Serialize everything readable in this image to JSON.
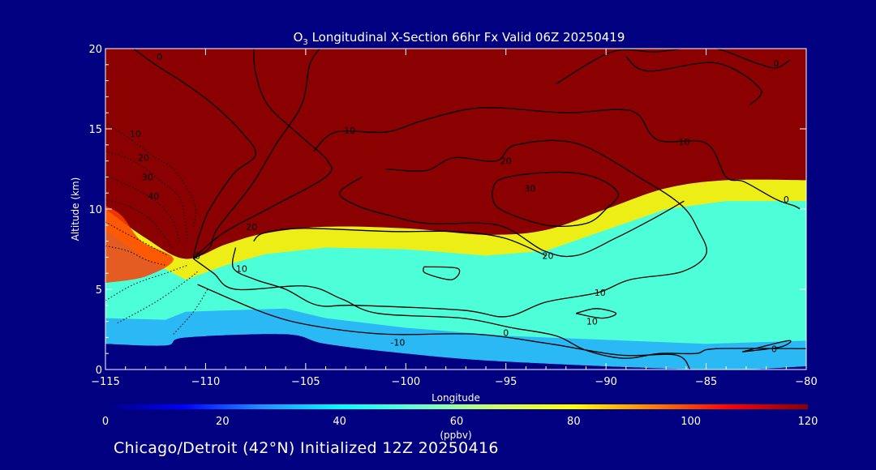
{
  "title": {
    "prefix": "O",
    "subscript": "3",
    "rest": " Longitudinal X-Section 66hr  Fx Valid 06Z 20250419"
  },
  "footer": "Chicago/Detroit (42°N) Initialized 12Z 20250416",
  "colors": {
    "background": "#000080",
    "stratosphere": "#8b0000",
    "contour": "#000000"
  },
  "chart_data": {
    "type": "heatmap",
    "xlabel": "Longitude",
    "ylabel": "Altitude (km)",
    "xlim": [
      -115,
      -80
    ],
    "ylim": [
      0,
      20
    ],
    "xticks": [
      -115,
      -110,
      -105,
      -100,
      -95,
      -90,
      -85,
      -80
    ],
    "xtick_labels": [
      "−115",
      "−110",
      "−105",
      "−100",
      "−95",
      "−90",
      "−85",
      "−80"
    ],
    "yticks": [
      0,
      5,
      10,
      15,
      20
    ],
    "ytick_labels": [
      "0",
      "5",
      "10",
      "15",
      "20"
    ],
    "colorbar": {
      "label": "(ppbv)",
      "range": [
        0,
        120
      ],
      "ticks": [
        0,
        20,
        40,
        60,
        80,
        100,
        120
      ],
      "tick_labels": [
        "0",
        "20",
        "40",
        "60",
        "80",
        "100",
        "120"
      ],
      "colormap": [
        "#000080",
        "#0000ff",
        "#1e90ff",
        "#00ffff",
        "#66ffcc",
        "#ccff66",
        "#ffff00",
        "#ff8000",
        "#ff0000",
        "#8b0000"
      ]
    },
    "ozone_field_ppbv": {
      "boundary_layer_top_km": [
        {
          "lon": -115,
          "alt": 1.6
        },
        {
          "lon": -112,
          "alt": 1.5
        },
        {
          "lon": -111,
          "alt": 2.0
        },
        {
          "lon": -106,
          "alt": 2.2
        },
        {
          "lon": -104,
          "alt": 1.6
        },
        {
          "lon": -100,
          "alt": 1.0
        },
        {
          "lon": -95,
          "alt": 0.5
        },
        {
          "lon": -85,
          "alt": 0.0
        },
        {
          "lon": -80,
          "alt": 0.2
        }
      ],
      "free_troposphere_ppbv": 50,
      "tropopause_km": [
        {
          "lon": -115,
          "alt": 10.0
        },
        {
          "lon": -113,
          "alt": 8.2
        },
        {
          "lon": -111,
          "alt": 6.9
        },
        {
          "lon": -109,
          "alt": 7.8
        },
        {
          "lon": -107,
          "alt": 8.5
        },
        {
          "lon": -104,
          "alt": 8.9
        },
        {
          "lon": -100,
          "alt": 8.8
        },
        {
          "lon": -96,
          "alt": 8.4
        },
        {
          "lon": -93,
          "alt": 8.7
        },
        {
          "lon": -90,
          "alt": 10.0
        },
        {
          "lon": -87,
          "alt": 11.3
        },
        {
          "lon": -84,
          "alt": 11.8
        },
        {
          "lon": -80,
          "alt": 11.8
        }
      ],
      "stratosphere_ppbv": 120
    },
    "contour_labels": [
      {
        "text": "0",
        "lon": -112.3,
        "alt": 19.5
      },
      {
        "text": "0",
        "lon": -81.5,
        "alt": 19.1
      },
      {
        "text": "10",
        "lon": -113.5,
        "alt": 14.7
      },
      {
        "text": "20",
        "lon": -113.1,
        "alt": 13.2
      },
      {
        "text": "30",
        "lon": -112.9,
        "alt": 12.0
      },
      {
        "text": "40",
        "lon": -112.6,
        "alt": 10.8
      },
      {
        "text": "10",
        "lon": -102.8,
        "alt": 14.9
      },
      {
        "text": "20",
        "lon": -95.0,
        "alt": 13.0
      },
      {
        "text": "10",
        "lon": -86.1,
        "alt": 14.2
      },
      {
        "text": "30",
        "lon": -93.8,
        "alt": 11.3
      },
      {
        "text": "20",
        "lon": -107.7,
        "alt": 8.9
      },
      {
        "text": "10",
        "lon": -108.2,
        "alt": 6.3
      },
      {
        "text": "0",
        "lon": -110.4,
        "alt": 7.1
      },
      {
        "text": "20",
        "lon": -92.9,
        "alt": 7.1
      },
      {
        "text": "10",
        "lon": -90.3,
        "alt": 4.8
      },
      {
        "text": "10",
        "lon": -90.7,
        "alt": 3.0
      },
      {
        "text": "0",
        "lon": -95.0,
        "alt": 2.3
      },
      {
        "text": "-10",
        "lon": -100.4,
        "alt": 1.7
      },
      {
        "text": "0",
        "lon": -81.6,
        "alt": 1.3
      },
      {
        "text": "0",
        "lon": -81.0,
        "alt": 10.6
      }
    ],
    "contours": [
      {
        "style": "solid",
        "points": [
          [
            -113.6,
            20
          ],
          [
            -112.5,
            19
          ],
          [
            -111,
            17.8
          ],
          [
            -109.6,
            16.5
          ],
          [
            -108.2,
            14.8
          ],
          [
            -107.5,
            13.4
          ],
          [
            -108.6,
            12.2
          ],
          [
            -109.8,
            10
          ],
          [
            -110.2,
            8.8
          ],
          [
            -110.5,
            7.6
          ],
          [
            -110.6,
            6.9
          ]
        ]
      },
      {
        "style": "solid",
        "points": [
          [
            -107.6,
            20
          ],
          [
            -107.5,
            18.5
          ],
          [
            -106.9,
            16.5
          ],
          [
            -105.3,
            14.6
          ],
          [
            -103.9,
            13.0
          ],
          [
            -104,
            12.0
          ],
          [
            -106.6,
            10.2
          ],
          [
            -109,
            8.6
          ],
          [
            -110.2,
            7.4
          ],
          [
            -110.6,
            6.9
          ]
        ]
      },
      {
        "style": "solid",
        "points": [
          [
            -110.6,
            6.9
          ],
          [
            -109.8,
            7.6
          ],
          [
            -109.4,
            8.8
          ],
          [
            -107.7,
            11.5
          ],
          [
            -106.5,
            14.0
          ],
          [
            -105.2,
            16.5
          ],
          [
            -104.8,
            19.0
          ],
          [
            -104.3,
            20
          ]
        ]
      },
      {
        "style": "solid",
        "points": [
          [
            -104.6,
            13.6
          ],
          [
            -103.5,
            14.8
          ],
          [
            -101,
            14.8
          ],
          [
            -99.2,
            15.5
          ],
          [
            -97,
            16.2
          ],
          [
            -95.2,
            16.3
          ],
          [
            -92,
            16.0
          ],
          [
            -89.5,
            16.2
          ],
          [
            -88.4,
            15.9
          ],
          [
            -87.4,
            14.3
          ],
          [
            -85,
            14.1
          ],
          [
            -84,
            12.0
          ],
          [
            -83.1,
            11.7
          ],
          [
            -81.5,
            10.6
          ],
          [
            -80.6,
            10.2
          ],
          [
            -80.3,
            10.0
          ]
        ]
      },
      {
        "style": "solid",
        "points": [
          [
            -89,
            19.5
          ],
          [
            -87.9,
            18.6
          ],
          [
            -84.5,
            19.1
          ],
          [
            -82.3,
            17.5
          ],
          [
            -82.8,
            16.5
          ]
        ]
      },
      {
        "style": "solid",
        "points": [
          [
            -92.5,
            17.8
          ],
          [
            -89.7,
            19.8
          ],
          [
            -87.5,
            19.8
          ],
          [
            -84.9,
            20.1
          ],
          [
            -82.5,
            19.1
          ],
          [
            -81.5,
            18.8
          ],
          [
            -80.8,
            19.3
          ]
        ]
      },
      {
        "style": "solid",
        "points": [
          [
            -101,
            12.5
          ],
          [
            -99,
            12.4
          ],
          [
            -97.6,
            13.2
          ],
          [
            -95.5,
            13.0
          ],
          [
            -94.5,
            14.0
          ],
          [
            -91.5,
            14.1
          ],
          [
            -88.1,
            11.8
          ],
          [
            -86.2,
            10.2
          ],
          [
            -85.4,
            8.7
          ],
          [
            -85,
            7.2
          ],
          [
            -86.2,
            6.1
          ],
          [
            -88.8,
            5.6
          ],
          [
            -90.4,
            4.8
          ],
          [
            -93.0,
            4.2
          ],
          [
            -95.0,
            3.3
          ],
          [
            -97.2,
            3.7
          ],
          [
            -102.5,
            4.0
          ],
          [
            -104.4,
            4.0
          ],
          [
            -106,
            5.0
          ],
          [
            -107.5,
            5.6
          ],
          [
            -108.6,
            6.3
          ],
          [
            -108.5,
            7.6
          ]
        ]
      },
      {
        "style": "solid",
        "points": [
          [
            -95.7,
            11.0
          ],
          [
            -95.2,
            11.9
          ],
          [
            -92.6,
            12.3
          ],
          [
            -90.6,
            12.0
          ],
          [
            -89.4,
            11.0
          ],
          [
            -90.0,
            10.0
          ],
          [
            -91.0,
            9.1
          ],
          [
            -93.0,
            9.0
          ],
          [
            -95.3,
            10.0
          ],
          [
            -95.7,
            11.0
          ]
        ]
      },
      {
        "style": "solid",
        "points": [
          [
            -102.2,
            12.0
          ],
          [
            -103.3,
            11.0
          ],
          [
            -102.4,
            10.2
          ],
          [
            -100.8,
            9.6
          ],
          [
            -98.9,
            9.1
          ],
          [
            -95.4,
            9.0
          ],
          [
            -93.1,
            7.4
          ],
          [
            -91.5,
            7.1
          ],
          [
            -89.5,
            8.2
          ],
          [
            -87.5,
            9.5
          ],
          [
            -86.1,
            10.5
          ]
        ]
      },
      {
        "style": "solid",
        "points": [
          [
            -107.6,
            8.0
          ],
          [
            -107.1,
            8.5
          ],
          [
            -105.2,
            8.8
          ],
          [
            -100.7,
            8.6
          ],
          [
            -97.6,
            8.6
          ],
          [
            -95.1,
            8.2
          ],
          [
            -93.0,
            7.1
          ]
        ]
      },
      {
        "style": "solid",
        "points": [
          [
            -99.1,
            6.4
          ],
          [
            -99.0,
            6.0
          ],
          [
            -97.7,
            5.6
          ],
          [
            -97.4,
            6.3
          ],
          [
            -99.1,
            6.4
          ]
        ]
      },
      {
        "style": "solid",
        "points": [
          [
            -91.5,
            3.5
          ],
          [
            -90.2,
            3.2
          ],
          [
            -89.5,
            3.5
          ],
          [
            -90.5,
            3.8
          ],
          [
            -91.5,
            3.5
          ]
        ]
      },
      {
        "style": "solid",
        "points": [
          [
            -110.6,
            6.9
          ],
          [
            -109.6,
            6.0
          ],
          [
            -108.5,
            5.0
          ],
          [
            -105,
            5.2
          ],
          [
            -103.2,
            4.4
          ],
          [
            -101.4,
            3.5
          ],
          [
            -97.2,
            3.2
          ],
          [
            -94.7,
            2.6
          ],
          [
            -92.5,
            2.1
          ],
          [
            -91,
            1.2
          ],
          [
            -89.1,
            0.7
          ],
          [
            -87.3,
            1.0
          ],
          [
            -85.5,
            1.0
          ],
          [
            -84.5,
            1.3
          ],
          [
            -80,
            1.3
          ]
        ]
      },
      {
        "style": "solid",
        "points": [
          [
            -83.2,
            1.1
          ],
          [
            -81.3,
            1.4
          ],
          [
            -80.9,
            1.8
          ],
          [
            -83.2,
            1.1
          ]
        ]
      },
      {
        "style": "solid",
        "points": [
          [
            -85.8,
            0
          ],
          [
            -86.5,
            0.9
          ],
          [
            -89.3,
            0.9
          ],
          [
            -92.8,
            1.6
          ],
          [
            -96.5,
            2.2
          ],
          [
            -101,
            2.2
          ],
          [
            -104.5,
            2.7
          ],
          [
            -107,
            3.5
          ],
          [
            -110.4,
            5.3
          ]
        ]
      },
      {
        "style": "dotted",
        "points": [
          [
            -114.9,
            15.3
          ],
          [
            -113.8,
            14.4
          ],
          [
            -112.6,
            13.3
          ],
          [
            -111.6,
            12.5
          ],
          [
            -110.8,
            11.0
          ],
          [
            -110.5,
            10.0
          ],
          [
            -110.6,
            8.8
          ]
        ]
      },
      {
        "style": "dotted",
        "points": [
          [
            -115,
            13.6
          ],
          [
            -113.6,
            13.0
          ],
          [
            -112.3,
            11.8
          ],
          [
            -111.3,
            10.7
          ],
          [
            -111.0,
            9.1
          ],
          [
            -110.9,
            8.0
          ]
        ]
      },
      {
        "style": "dotted",
        "points": [
          [
            -115,
            12.1
          ],
          [
            -113.4,
            11.2
          ],
          [
            -112.3,
            10.3
          ],
          [
            -111.6,
            9.2
          ],
          [
            -111.3,
            8.0
          ]
        ]
      },
      {
        "style": "dotted",
        "points": [
          [
            -115,
            10.6
          ],
          [
            -113.9,
            10.2
          ],
          [
            -112.8,
            9.4
          ],
          [
            -112.0,
            8.2
          ],
          [
            -111.6,
            7.5
          ]
        ]
      },
      {
        "style": "dotted",
        "points": [
          [
            -115,
            9.2
          ],
          [
            -114,
            8.5
          ],
          [
            -112.9,
            7.8
          ],
          [
            -111.9,
            7.1
          ]
        ]
      },
      {
        "style": "dotted",
        "points": [
          [
            -115,
            7.7
          ],
          [
            -113.9,
            7.4
          ],
          [
            -112.9,
            6.8
          ],
          [
            -112.0,
            6.5
          ]
        ]
      },
      {
        "style": "dotted",
        "points": [
          [
            -115,
            4.3
          ],
          [
            -113.6,
            5.3
          ],
          [
            -112.0,
            6.0
          ],
          [
            -110.9,
            6.5
          ]
        ]
      },
      {
        "style": "dotted",
        "points": [
          [
            -114.4,
            2.9
          ],
          [
            -112.5,
            4.2
          ],
          [
            -111.0,
            5.5
          ],
          [
            -110.4,
            6.1
          ]
        ]
      },
      {
        "style": "dotted",
        "points": [
          [
            -111.6,
            2.2
          ],
          [
            -110.6,
            3.6
          ],
          [
            -109.9,
            5.0
          ]
        ]
      }
    ]
  }
}
